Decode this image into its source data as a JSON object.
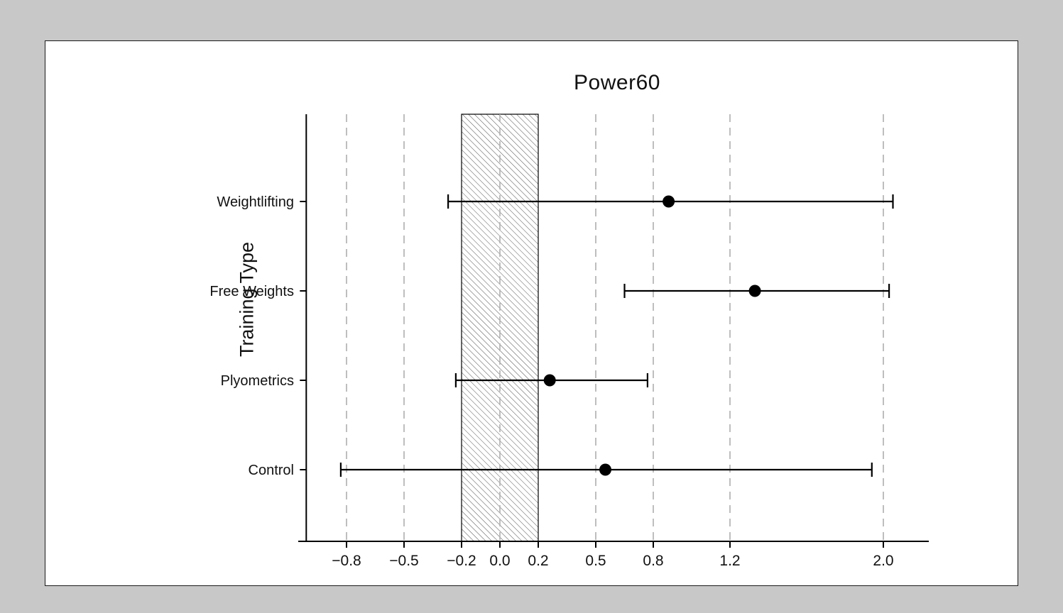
{
  "page": {
    "background_color": "#c8c8c8",
    "panel_color": "#ffffff",
    "ink_color": "#111111",
    "gridline_color": "#b3b3b3"
  },
  "chart_data": {
    "type": "scatter",
    "subtype": "forest-plot-horizontal-error-bars",
    "title": "Power60",
    "xlabel": "",
    "ylabel": "Training Type",
    "categories": [
      "Weightlifting",
      "Free Weights",
      "Plyometrics",
      "Control"
    ],
    "series": [
      {
        "name": "effect-size-mean-with-ci",
        "values": [
          0.88,
          1.33,
          0.26,
          0.55
        ],
        "ci_low": [
          -0.27,
          0.65,
          -0.23,
          -0.83
        ],
        "ci_high": [
          2.05,
          2.03,
          0.77,
          1.94
        ]
      }
    ],
    "x_ticks": [
      -0.8,
      -0.5,
      -0.2,
      0.0,
      0.2,
      0.5,
      0.8,
      1.2,
      2.0
    ],
    "x_tick_labels": [
      "−0.8",
      "−0.5",
      "−0.2",
      "0.0",
      "0.2",
      "0.5",
      "0.8",
      "1.2",
      "2.0"
    ],
    "gridlines": [
      -0.8,
      -0.5,
      0.0,
      0.5,
      0.8,
      1.2,
      2.0
    ],
    "gridline_style": "dashed",
    "trivial_effect_band": {
      "from": -0.2,
      "to": 0.2,
      "fill": "diagonal-hatch"
    },
    "xlim": [
      -1.01,
      2.23
    ],
    "legend": "none",
    "marker": "filled-circle",
    "grid": "vertical-only"
  }
}
